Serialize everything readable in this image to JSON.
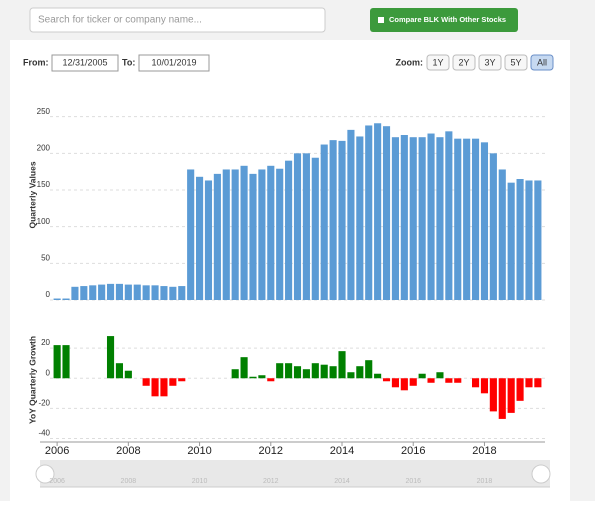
{
  "search_placeholder": "Search for ticker or company name...",
  "compare_button": "Compare BLK With Other Stocks",
  "from_label": "From:",
  "from_date": "12/31/2005",
  "to_label": "To:",
  "to_date": "10/01/2019",
  "zoom_label": "Zoom:",
  "zoom_options": [
    "1Y",
    "2Y",
    "3Y",
    "5Y",
    "All"
  ],
  "zoom_selected": "All",
  "chart_data": [
    {
      "type": "bar",
      "y_label": "Quarterly Values",
      "color": "#5b9bd5",
      "grid": true,
      "x": [
        2006,
        2006.25,
        2006.5,
        2006.75,
        2007,
        2007.25,
        2007.5,
        2007.75,
        2008,
        2008.25,
        2008.5,
        2008.75,
        2009,
        2009.25,
        2009.5,
        2009.75,
        2010,
        2010.25,
        2010.5,
        2010.75,
        2011,
        2011.25,
        2011.5,
        2011.75,
        2012,
        2012.25,
        2012.5,
        2012.75,
        2013,
        2013.25,
        2013.5,
        2013.75,
        2014,
        2014.25,
        2014.5,
        2014.75,
        2015,
        2015.25,
        2015.5,
        2015.75,
        2016,
        2016.25,
        2016.5,
        2016.75,
        2017,
        2017.25,
        2017.5,
        2017.75,
        2018,
        2018.25,
        2018.5,
        2018.75,
        2019,
        2019.25,
        2019.5
      ],
      "values": [
        2,
        2,
        18,
        19,
        20,
        21,
        22,
        22,
        21,
        21,
        20,
        20,
        19,
        18,
        19,
        178,
        168,
        163,
        172,
        178,
        178,
        183,
        172,
        178,
        183,
        179,
        190,
        200,
        200,
        194,
        212,
        218,
        217,
        232,
        223,
        238,
        241,
        237,
        222,
        225,
        222,
        222,
        227,
        222,
        230,
        220,
        220,
        220,
        215,
        200,
        178,
        160,
        165,
        163,
        163
      ],
      "xlim": [
        2005.8,
        2019.7
      ],
      "ylim": [
        0,
        300
      ],
      "yticks": [
        0,
        50,
        100,
        150,
        200,
        250
      ]
    },
    {
      "type": "signed-bar",
      "y_label": "YoY Quarterly Growth",
      "positive_color": "#008000",
      "negative_color": "#ff0000",
      "grid": true,
      "x": [
        2006,
        2006.25,
        2006.5,
        2006.75,
        2007,
        2007.25,
        2007.5,
        2007.75,
        2008,
        2008.25,
        2008.5,
        2008.75,
        2009,
        2009.25,
        2009.5,
        2009.75,
        2010,
        2010.25,
        2010.5,
        2010.75,
        2011,
        2011.25,
        2011.5,
        2011.75,
        2012,
        2012.25,
        2012.5,
        2012.75,
        2013,
        2013.25,
        2013.5,
        2013.75,
        2014,
        2014.25,
        2014.5,
        2014.75,
        2015,
        2015.25,
        2015.5,
        2015.75,
        2016,
        2016.25,
        2016.5,
        2016.75,
        2017,
        2017.25,
        2017.5,
        2017.75,
        2018,
        2018.25,
        2018.5,
        2018.75,
        2019,
        2019.25,
        2019.5
      ],
      "values": [
        22,
        22,
        null,
        null,
        null,
        null,
        28,
        10,
        5,
        null,
        -5,
        -12,
        -12,
        -5,
        -2,
        null,
        null,
        null,
        null,
        null,
        6,
        14,
        1,
        2,
        -2,
        10,
        10,
        8,
        6,
        10,
        9,
        8,
        18,
        4,
        8,
        12,
        3,
        -2,
        -6,
        -8,
        -5,
        3,
        -3,
        4,
        -3,
        -3,
        null,
        -6,
        -10,
        -22,
        -27,
        -23,
        -15,
        -6,
        -6
      ],
      "xlim": [
        2005.8,
        2019.7
      ],
      "xticks": [
        2006,
        2008,
        2010,
        2012,
        2014,
        2016,
        2018
      ],
      "ylim": [
        -41,
        42
      ],
      "yticks": [
        -40,
        -20,
        0,
        20
      ]
    }
  ]
}
